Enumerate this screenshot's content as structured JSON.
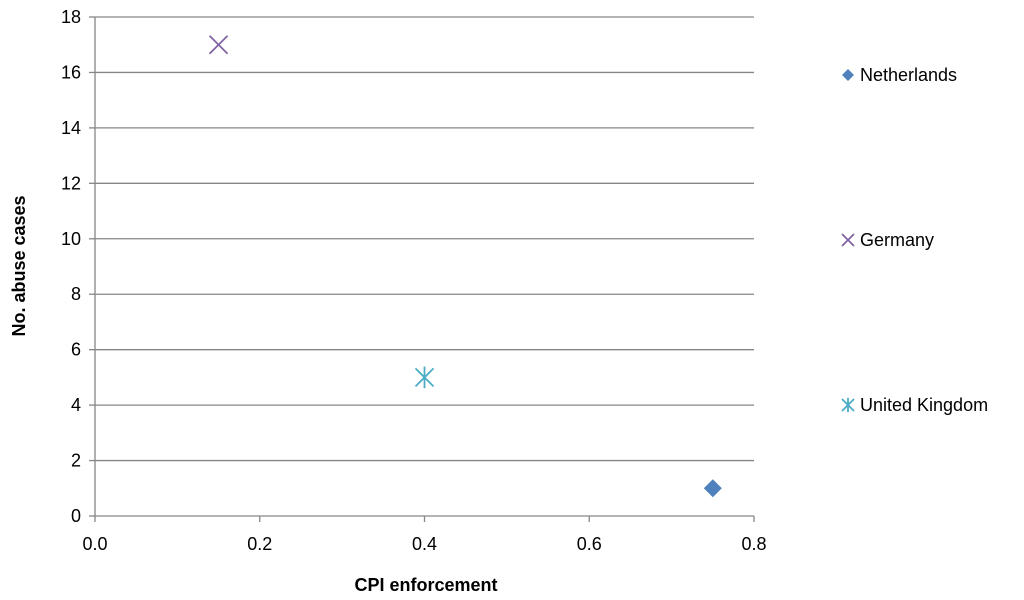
{
  "chart_data": {
    "type": "scatter",
    "xlabel": "CPI enforcement",
    "ylabel": "No. abuse cases",
    "xlim": [
      0.0,
      0.8
    ],
    "ylim": [
      0,
      18
    ],
    "x_ticks": [
      0.0,
      0.2,
      0.4,
      0.6,
      0.8
    ],
    "x_tick_labels": [
      "0.0",
      "0.2",
      "0.4",
      "0.6",
      "0.8"
    ],
    "y_ticks": [
      0,
      2,
      4,
      6,
      8,
      10,
      12,
      14,
      16,
      18
    ],
    "y_tick_labels": [
      "0",
      "2",
      "4",
      "6",
      "8",
      "10",
      "12",
      "14",
      "16",
      "18"
    ],
    "grid": "horizontal",
    "legend_position": "right",
    "series": [
      {
        "name": "Netherlands",
        "marker": "diamond",
        "color": "#4f81bd",
        "points": [
          {
            "x": 0.75,
            "y": 1
          }
        ]
      },
      {
        "name": "Germany",
        "marker": "x",
        "color": "#8064a2",
        "points": [
          {
            "x": 0.15,
            "y": 17
          }
        ]
      },
      {
        "name": "United Kingdom",
        "marker": "asterisk",
        "color": "#4bacc6",
        "points": [
          {
            "x": 0.4,
            "y": 5
          }
        ]
      }
    ]
  }
}
